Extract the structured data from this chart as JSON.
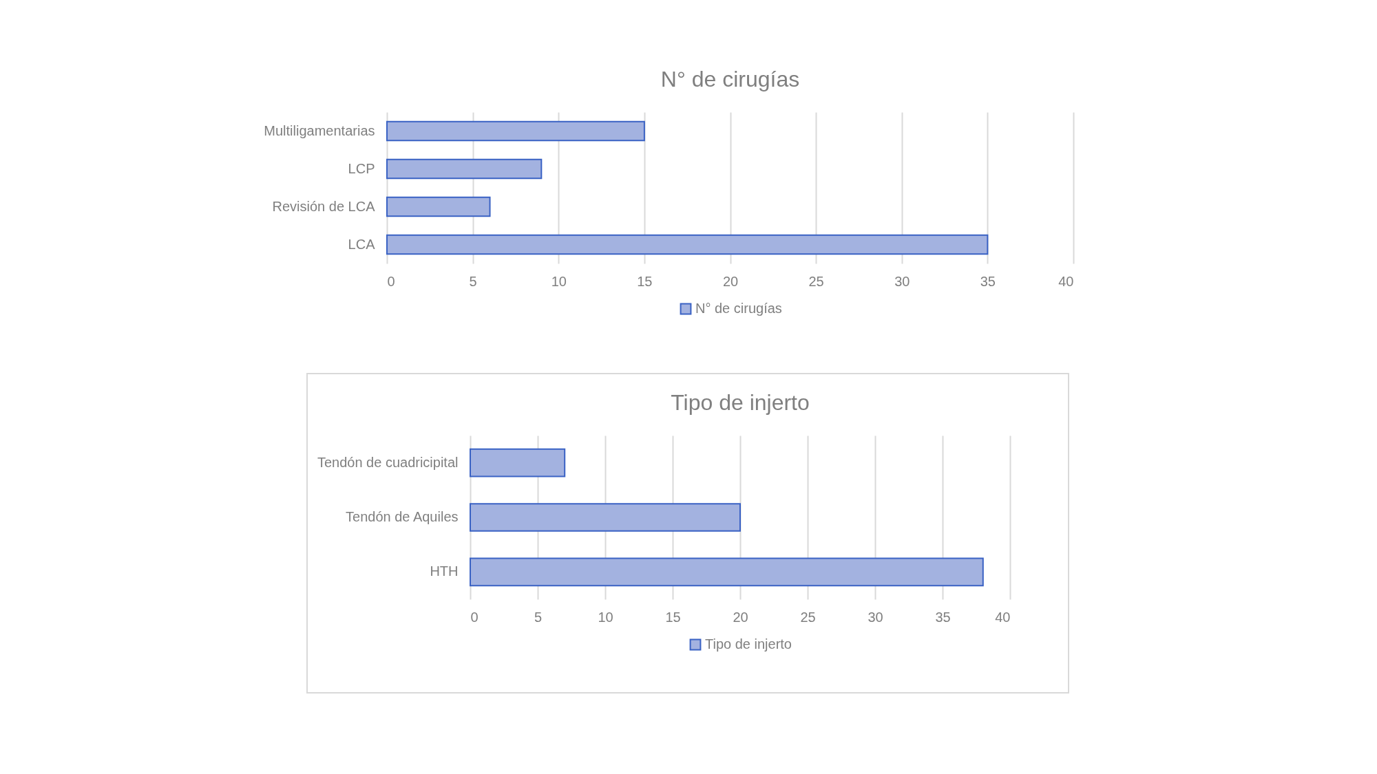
{
  "chart_data": [
    {
      "type": "bar",
      "orientation": "horizontal",
      "title": "N° de cirugías",
      "categories": [
        "Multiligamentarias",
        "LCP",
        "Revisión de LCA",
        "LCA"
      ],
      "series": [
        {
          "name": "N° de cirugías",
          "color": "#a3b2e0",
          "values": [
            15,
            9,
            6,
            35
          ]
        }
      ],
      "xlim": [
        0,
        40
      ],
      "xticks": [
        0,
        5,
        10,
        15,
        20,
        25,
        30,
        35,
        40
      ],
      "grid": "x",
      "legend": "bottom"
    },
    {
      "type": "bar",
      "orientation": "horizontal",
      "title": "Tipo de injerto",
      "categories": [
        "Tendón de cuadricipital",
        "Tendón de Aquiles",
        "HTH"
      ],
      "series": [
        {
          "name": "Tipo de injerto",
          "color": "#a3b2e0",
          "values": [
            7,
            20,
            38
          ]
        }
      ],
      "xlim": [
        0,
        40
      ],
      "xticks": [
        0,
        5,
        10,
        15,
        20,
        25,
        30,
        35,
        40
      ],
      "grid": "x",
      "legend": "bottom"
    }
  ]
}
